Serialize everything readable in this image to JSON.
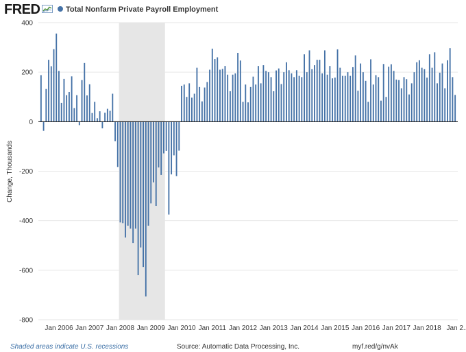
{
  "header": {
    "logo": "FRED",
    "series_title": "Total Nonfarm Private Payroll Employment"
  },
  "colors": {
    "series": "#4572a7",
    "recession": "#e6e6e6",
    "grid": "#e6e6e6",
    "zero_line": "#000000"
  },
  "footer": {
    "recession_note": "Shaded areas indicate U.S. recessions",
    "source": "Source: Automatic Data Processing, Inc.",
    "url": "myf.red/g/nvAk"
  },
  "chart_data": {
    "type": "bar",
    "title": "Total Nonfarm Private Payroll Employment",
    "ylabel": "Change, Thousands",
    "xlabel": "",
    "ylim": [
      -800,
      400
    ],
    "yticks": [
      -800,
      -600,
      -400,
      -200,
      0,
      200,
      400
    ],
    "grid": true,
    "x_start": "2005-06",
    "frequency": "monthly",
    "xtick_labels": [
      {
        "label": "Jan 2006",
        "month_index": 7
      },
      {
        "label": "Jan 2007",
        "month_index": 19
      },
      {
        "label": "Jan 2008",
        "month_index": 31
      },
      {
        "label": "Jan 2009",
        "month_index": 43
      },
      {
        "label": "Jan 2010",
        "month_index": 55
      },
      {
        "label": "Jan 2011",
        "month_index": 67
      },
      {
        "label": "Jan 2012",
        "month_index": 79
      },
      {
        "label": "Jan 2013",
        "month_index": 91
      },
      {
        "label": "Jan 2014",
        "month_index": 103
      },
      {
        "label": "Jan 2015",
        "month_index": 115
      },
      {
        "label": "Jan 2016",
        "month_index": 127
      },
      {
        "label": "Jan 2017",
        "month_index": 139
      },
      {
        "label": "Jan 2018",
        "month_index": 151
      },
      {
        "label": "Jan 2...",
        "month_index": 163
      }
    ],
    "recession": {
      "start_index": 31,
      "end_index": 48
    },
    "values": [
      188,
      -37,
      132,
      250,
      224,
      293,
      356,
      205,
      76,
      173,
      107,
      120,
      183,
      55,
      107,
      -14,
      168,
      237,
      106,
      151,
      35,
      80,
      14,
      42,
      -27,
      36,
      52,
      44,
      113,
      -79,
      -183,
      -407,
      -410,
      -468,
      -420,
      -432,
      -490,
      -432,
      -620,
      -508,
      -587,
      -706,
      -420,
      -330,
      -245,
      -340,
      -185,
      -215,
      -128,
      -118,
      -375,
      -213,
      -136,
      -220,
      -117,
      145,
      150,
      100,
      155,
      97,
      113,
      218,
      140,
      82,
      138,
      160,
      210,
      295,
      253,
      260,
      210,
      213,
      225,
      190,
      123,
      190,
      195,
      278,
      247,
      80,
      150,
      78,
      140,
      182,
      150,
      225,
      155,
      228,
      205,
      200,
      180,
      123,
      207,
      215,
      152,
      200,
      240,
      208,
      195,
      180,
      208,
      185,
      180,
      272,
      200,
      288,
      212,
      228,
      250,
      250,
      195,
      288,
      190,
      225,
      175,
      178,
      292,
      218,
      185,
      185,
      200,
      185,
      220,
      268,
      125,
      235,
      200,
      165,
      80,
      252,
      150,
      188,
      180,
      85,
      233,
      100,
      222,
      232,
      205,
      170,
      168,
      135,
      180,
      172,
      110,
      155,
      200,
      240,
      248,
      218,
      212,
      178,
      272,
      218,
      280,
      155,
      198,
      235,
      135,
      248,
      297,
      180,
      108
    ]
  }
}
